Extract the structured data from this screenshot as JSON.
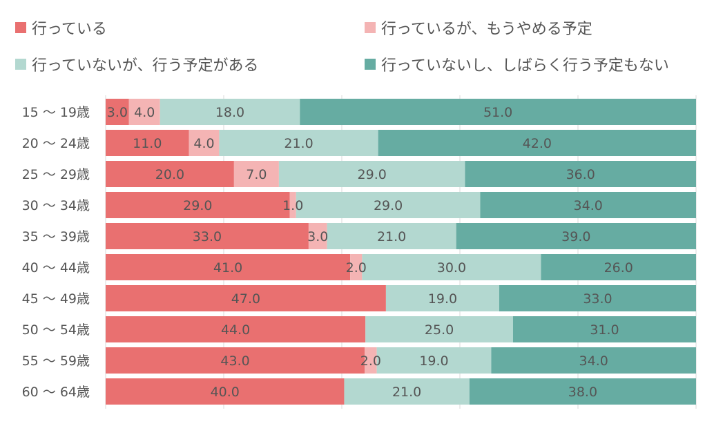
{
  "chart_data": {
    "type": "bar",
    "orientation": "horizontal",
    "stacked": true,
    "categories": [
      "15 〜 19歳",
      "20 〜 24歳",
      "25 〜 29歳",
      "30 〜 34歳",
      "35 〜 39歳",
      "40 〜 44歳",
      "45 〜 49歳",
      "50 〜 54歳",
      "55 〜 59歳",
      "60 〜 64歳"
    ],
    "series": [
      {
        "name": "行っている",
        "color": "#e97070",
        "values": [
          3.0,
          11.0,
          20.0,
          29.0,
          33.0,
          41.0,
          47.0,
          44.0,
          43.0,
          40.0
        ]
      },
      {
        "name": "行っているが、もうやめる予定",
        "color": "#f4b4b4",
        "values": [
          4.0,
          4.0,
          7.0,
          1.0,
          3.0,
          2.0,
          null,
          null,
          2.0,
          null
        ]
      },
      {
        "name": "行っていないが、行う予定がある",
        "color": "#b3d8d0",
        "values": [
          18.0,
          21.0,
          29.0,
          29.0,
          21.0,
          30.0,
          19.0,
          25.0,
          19.0,
          21.0
        ]
      },
      {
        "name": "行っていないし、しばらく行う予定もない",
        "color": "#66aca2",
        "values": [
          51.0,
          42.0,
          36.0,
          34.0,
          39.0,
          26.0,
          33.0,
          31.0,
          34.0,
          38.0
        ]
      }
    ],
    "legend_position": "top",
    "grid": true
  }
}
